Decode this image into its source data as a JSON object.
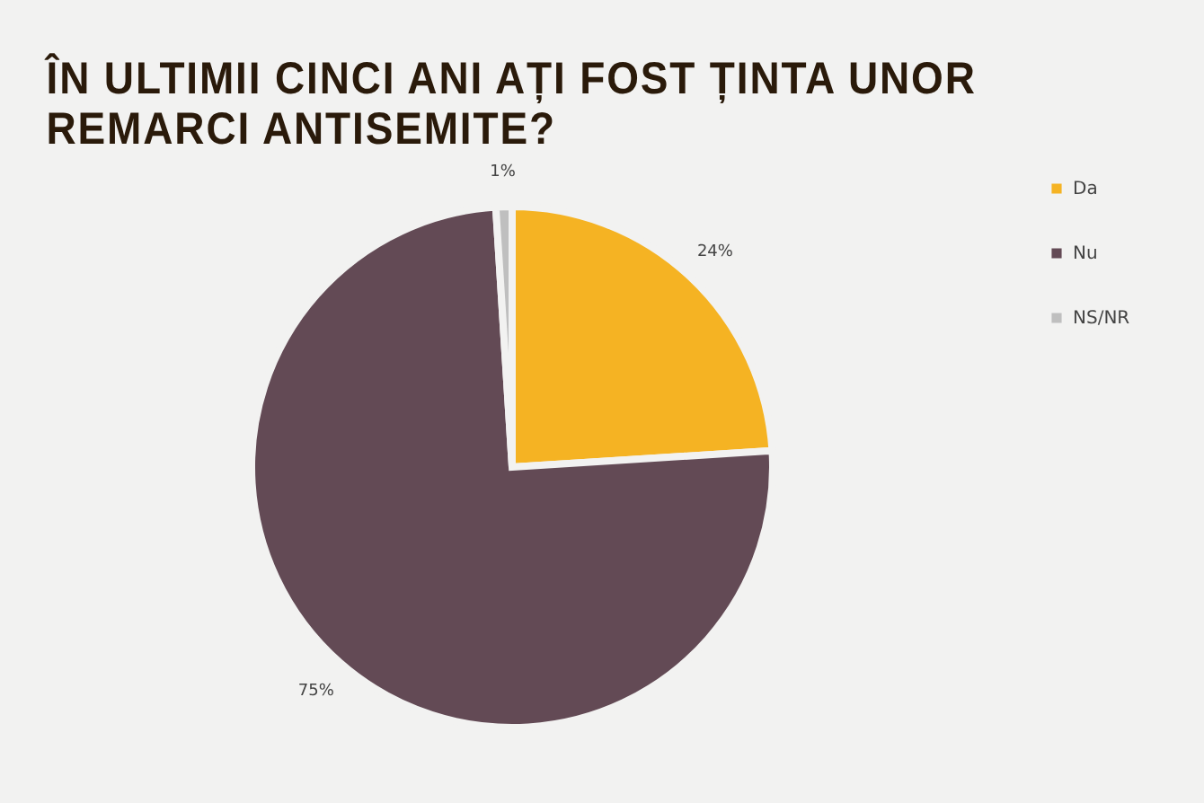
{
  "chart_data": {
    "type": "pie",
    "title": "ÎN ULTIMII CINCI ANI AȚI FOST ȚINTA UNOR REMARCI ANTISEMITE?",
    "categories": [
      "Da",
      "Nu",
      "NS/NR"
    ],
    "values": [
      24,
      75,
      1
    ],
    "colors": [
      "#f5b323",
      "#634a55",
      "#bfbfbf"
    ],
    "value_labels": [
      "24%",
      "75%",
      "1%"
    ],
    "legend": "right"
  }
}
